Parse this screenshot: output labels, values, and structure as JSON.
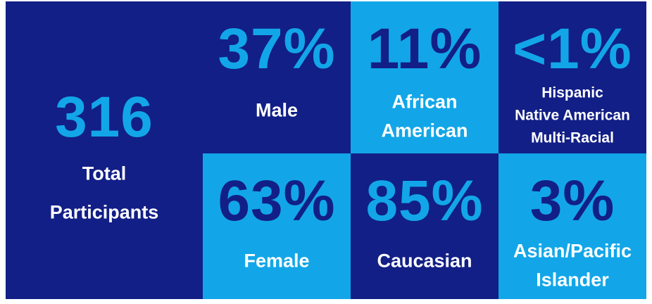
{
  "tiles": [
    {
      "value": "316",
      "label": [
        "Total",
        "Participants"
      ]
    },
    {
      "value": "37%",
      "label": [
        "Male"
      ]
    },
    {
      "value": "11%",
      "label": [
        "African",
        "American"
      ]
    },
    {
      "value": "<1%",
      "label": [
        "Hispanic",
        "Native American",
        "Multi-Racial"
      ]
    },
    {
      "value": "63%",
      "label": [
        "Female"
      ]
    },
    {
      "value": "85%",
      "label": [
        "Caucasian"
      ]
    },
    {
      "value": "3%",
      "label": [
        "Asian/Pacific",
        "Islander"
      ]
    }
  ]
}
